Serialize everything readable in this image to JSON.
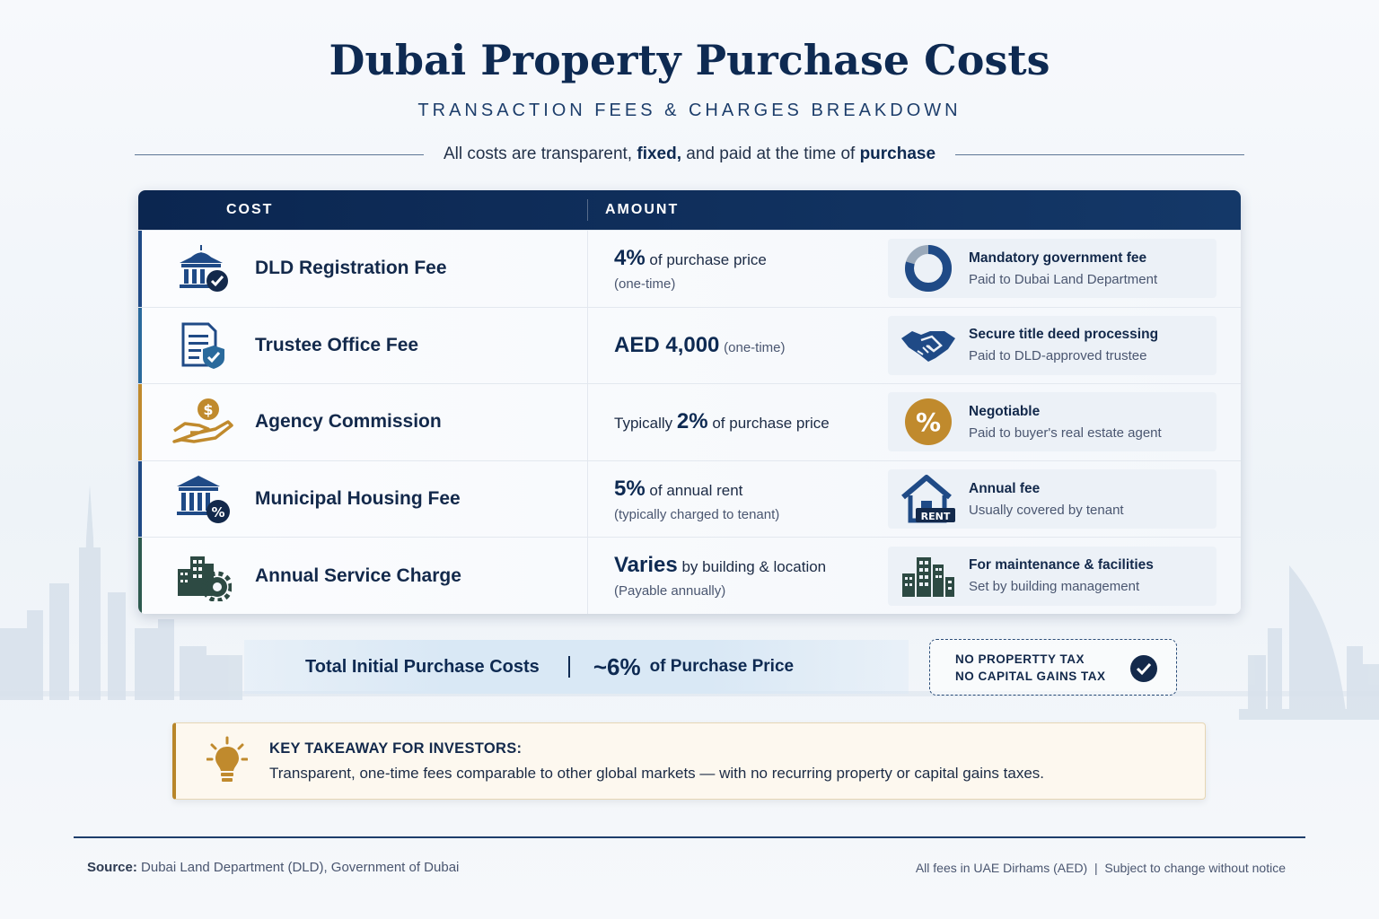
{
  "header": {
    "title": "Dubai Property Purchase Costs",
    "subtitle": "TRANSACTION FEES & CHARGES BREAKDOWN",
    "tagline_pre": "All costs are transparent,",
    "tagline_bold": "fixed,",
    "tagline_mid": "and paid at the time of",
    "tagline_end": "purchase"
  },
  "table": {
    "col_cost": "COST",
    "col_amount": "AMOUNT",
    "rows": [
      {
        "icon": "government-building-check-icon",
        "accent": "#1f4a86",
        "name": "DLD Registration Fee",
        "amount_big": "4%",
        "amount_text": "of purchase price",
        "amount_note": "(one-time)",
        "note_icon": "donut-chart-icon",
        "note_title": "Mandatory government fee",
        "note_sub": "Paid to Dubai Land Department"
      },
      {
        "icon": "document-shield-icon",
        "accent": "#2a6a9c",
        "name": "Trustee Office Fee",
        "amount_big": "AED 4,000",
        "amount_text": "(one-time)",
        "note_icon": "handshake-icon",
        "note_title": "Secure title deed processing",
        "note_sub": "Paid to DLD-approved trustee"
      },
      {
        "icon": "hand-coin-icon",
        "accent": "#c08a2d",
        "name": "Agency Commission",
        "amount_pre": "Typically",
        "amount_big": "2%",
        "amount_text": "of purchase price",
        "note_icon": "percent-badge-icon",
        "note_title": "Negotiable",
        "note_sub": "Paid to buyer's real estate agent"
      },
      {
        "icon": "municipal-building-percent-icon",
        "accent": "#1f4a86",
        "name": "Municipal Housing Fee",
        "amount_big": "5%",
        "amount_text": "of annual rent",
        "amount_note": "(typically charged to tenant)",
        "note_icon": "house-rent-icon",
        "note_title": "Annual fee",
        "note_sub": "Usually covered by tenant",
        "rent_label": "RENT"
      },
      {
        "icon": "buildings-gear-icon",
        "accent": "#2d5a4f",
        "name": "Annual Service Charge",
        "amount_big": "Varies",
        "amount_text": "by building & location",
        "amount_note": "(Payable annually)",
        "note_icon": "city-buildings-icon",
        "note_title": "For maintenance & facilities",
        "note_sub": "Set by building management"
      }
    ]
  },
  "total": {
    "label": "Total Initial Purchase Costs",
    "value": "~6%",
    "suffix": "of Purchase Price"
  },
  "no_tax": {
    "line1": "NO PROPERTTY TAX",
    "line2": "NO CAPITAL GAINS TAX",
    "icon": "check-circle-icon"
  },
  "takeaway": {
    "icon": "lightbulb-icon",
    "heading": "KEY TAKEAWAY FOR INVESTORS:",
    "body": "Transparent, one-time fees comparable to other global markets — with no recurring property or capital gains taxes."
  },
  "footer": {
    "source_label": "Source:",
    "source_text": "Dubai Land Department (DLD), Government of Dubai",
    "note": "All fees in UAE Dirhams (AED)  |  Subject to change without notice"
  },
  "colors": {
    "navy": "#0e2a52",
    "gold": "#c08a2d",
    "teal": "#2d5a4f"
  }
}
